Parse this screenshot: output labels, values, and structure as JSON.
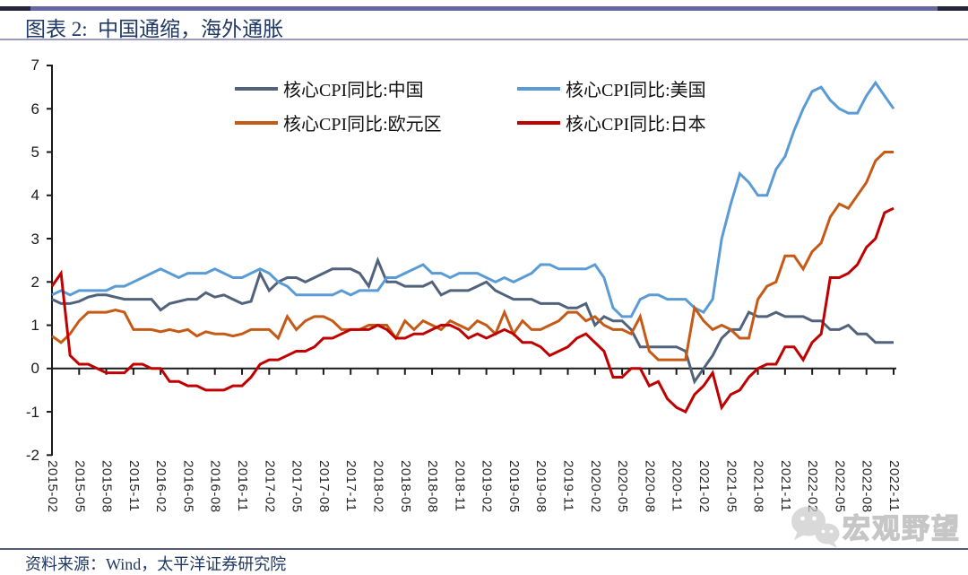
{
  "page": {
    "title": "图表 2:  中国通缩，海外通胀",
    "source": "资料来源：Wind，太平洋证券研究院",
    "watermark": {
      "icon": "wechat-icon",
      "text": "宏观野望"
    }
  },
  "colors": {
    "top_rule": "#66679e",
    "title_text": "#1f3864",
    "axis_text": "#1a1a1a",
    "watermark_gray": "#c6c6c6"
  },
  "chart_data": {
    "type": "line",
    "title": "中国通缩，海外通胀",
    "x_start": "2015-02",
    "x_end": "2022-11",
    "x_frequency": "monthly",
    "xlabel": "",
    "ylabel": "",
    "ylim": [
      -2,
      7
    ],
    "y_ticks": [
      7,
      6,
      5,
      4,
      3,
      2,
      1,
      0,
      -1,
      -2
    ],
    "grid": "none",
    "legend_position": "top-inside, 2 columns x 2 rows",
    "x_tick_labels": [
      "2015-02",
      "2015-05",
      "2015-08",
      "2015-11",
      "2016-02",
      "2016-05",
      "2016-08",
      "2016-11",
      "2017-02",
      "2017-05",
      "2017-08",
      "2017-11",
      "2018-02",
      "2018-05",
      "2018-08",
      "2018-11",
      "2019-02",
      "2019-05",
      "2019-08",
      "2019-11",
      "2020-02",
      "2020-05",
      "2020-08",
      "2020-11",
      "2021-02",
      "2021-05",
      "2021-08",
      "2021-11",
      "2022-02",
      "2022-05",
      "2022-08",
      "2022-11"
    ],
    "series": [
      {
        "key": "china",
        "name": "核心CPI同比:中国",
        "color": "#51637c",
        "values": [
          1.6,
          1.5,
          1.5,
          1.55,
          1.65,
          1.7,
          1.7,
          1.65,
          1.6,
          1.6,
          1.6,
          1.6,
          1.35,
          1.5,
          1.55,
          1.6,
          1.6,
          1.75,
          1.65,
          1.7,
          1.6,
          1.5,
          1.55,
          2.2,
          1.8,
          2.0,
          2.1,
          2.1,
          2.0,
          2.1,
          2.2,
          2.3,
          2.3,
          2.3,
          2.2,
          1.9,
          2.5,
          2.0,
          2.0,
          1.9,
          1.9,
          1.9,
          2.0,
          1.7,
          1.8,
          1.8,
          1.8,
          1.9,
          2.0,
          1.8,
          1.7,
          1.6,
          1.6,
          1.6,
          1.5,
          1.5,
          1.5,
          1.4,
          1.4,
          1.5,
          1.0,
          1.2,
          1.1,
          1.1,
          0.9,
          0.5,
          0.5,
          0.5,
          0.5,
          0.5,
          0.4,
          -0.3,
          0.0,
          0.3,
          0.7,
          0.9,
          0.9,
          1.3,
          1.2,
          1.2,
          1.3,
          1.2,
          1.2,
          1.2,
          1.1,
          1.1,
          0.9,
          0.9,
          1.0,
          0.8,
          0.8,
          0.6,
          0.6,
          0.6
        ]
      },
      {
        "key": "us",
        "name": "核心CPI同比:美国",
        "color": "#5b9bd5",
        "values": [
          1.7,
          1.8,
          1.7,
          1.8,
          1.8,
          1.8,
          1.8,
          1.9,
          1.9,
          2.0,
          2.1,
          2.2,
          2.3,
          2.2,
          2.1,
          2.2,
          2.2,
          2.2,
          2.3,
          2.2,
          2.1,
          2.1,
          2.2,
          2.3,
          2.2,
          2.0,
          1.9,
          1.7,
          1.7,
          1.7,
          1.7,
          1.7,
          1.8,
          1.7,
          1.8,
          1.8,
          1.8,
          2.1,
          2.1,
          2.2,
          2.3,
          2.4,
          2.2,
          2.2,
          2.1,
          2.2,
          2.2,
          2.2,
          2.1,
          2.0,
          2.1,
          2.0,
          2.1,
          2.2,
          2.4,
          2.4,
          2.3,
          2.3,
          2.3,
          2.3,
          2.4,
          2.1,
          1.4,
          1.2,
          1.2,
          1.6,
          1.7,
          1.7,
          1.6,
          1.6,
          1.6,
          1.4,
          1.3,
          1.6,
          3.0,
          3.8,
          4.5,
          4.3,
          4.0,
          4.0,
          4.6,
          4.9,
          5.5,
          6.0,
          6.4,
          6.5,
          6.2,
          6.0,
          5.9,
          5.9,
          6.3,
          6.6,
          6.3,
          6.0
        ]
      },
      {
        "key": "eurozone",
        "name": "核心CPI同比:欧元区",
        "color": "#c45a15",
        "values": [
          0.75,
          0.6,
          0.8,
          1.1,
          1.3,
          1.3,
          1.3,
          1.35,
          1.3,
          0.9,
          0.9,
          0.9,
          0.85,
          0.9,
          0.85,
          0.9,
          0.75,
          0.85,
          0.8,
          0.8,
          0.75,
          0.8,
          0.9,
          0.9,
          0.9,
          0.7,
          1.2,
          0.9,
          1.1,
          1.2,
          1.2,
          1.1,
          0.9,
          0.9,
          0.9,
          1.0,
          1.0,
          1.0,
          0.7,
          1.1,
          0.9,
          1.1,
          1.0,
          0.9,
          1.1,
          1.0,
          0.9,
          1.1,
          1.0,
          0.8,
          1.3,
          0.8,
          1.1,
          0.9,
          0.9,
          1.0,
          1.1,
          1.3,
          1.3,
          1.1,
          1.2,
          1.0,
          0.9,
          0.9,
          0.8,
          1.2,
          0.4,
          0.2,
          0.2,
          0.2,
          0.2,
          1.4,
          1.1,
          0.9,
          1.0,
          0.9,
          0.7,
          0.7,
          1.6,
          1.9,
          2.0,
          2.6,
          2.6,
          2.3,
          2.7,
          2.9,
          3.5,
          3.8,
          3.7,
          4.0,
          4.3,
          4.8,
          5.0,
          5.0
        ]
      },
      {
        "key": "japan",
        "name": "核心CPI同比:日本",
        "color": "#c00000",
        "values": [
          1.9,
          2.2,
          0.3,
          0.1,
          0.1,
          0.0,
          -0.1,
          -0.1,
          -0.1,
          0.1,
          0.1,
          0.0,
          0.0,
          -0.3,
          -0.3,
          -0.4,
          -0.4,
          -0.5,
          -0.5,
          -0.5,
          -0.4,
          -0.4,
          -0.2,
          0.1,
          0.2,
          0.2,
          0.3,
          0.4,
          0.4,
          0.5,
          0.7,
          0.7,
          0.8,
          0.9,
          0.9,
          0.9,
          1.0,
          0.9,
          0.7,
          0.7,
          0.8,
          0.8,
          0.9,
          1.0,
          1.0,
          0.9,
          0.7,
          0.8,
          0.7,
          0.8,
          0.9,
          0.8,
          0.6,
          0.6,
          0.5,
          0.3,
          0.4,
          0.5,
          0.7,
          0.8,
          0.6,
          0.4,
          -0.2,
          -0.2,
          0.0,
          0.0,
          -0.4,
          -0.3,
          -0.7,
          -0.9,
          -1.0,
          -0.6,
          -0.4,
          -0.1,
          -0.9,
          -0.6,
          -0.5,
          -0.2,
          0.0,
          0.1,
          0.1,
          0.5,
          0.5,
          0.2,
          0.6,
          0.8,
          2.1,
          2.1,
          2.2,
          2.4,
          2.8,
          3.0,
          3.6,
          3.7
        ]
      }
    ]
  }
}
